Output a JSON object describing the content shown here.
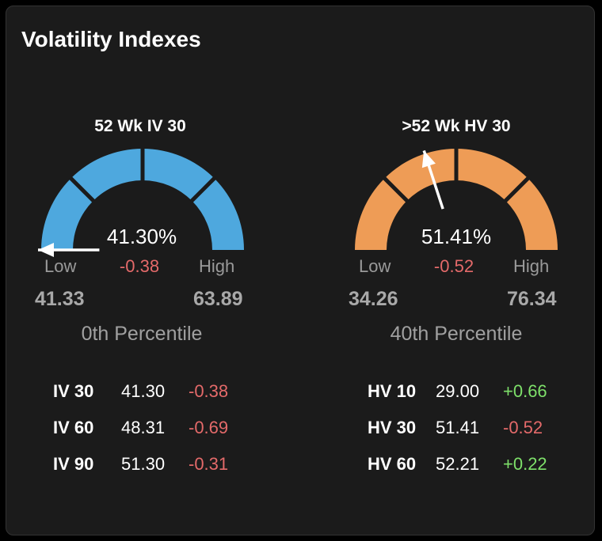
{
  "title": "Volatility Indexes",
  "gauges": [
    {
      "label": "52 Wk IV 30",
      "value": "41.30%",
      "change": "-0.38",
      "low_label": "Low",
      "high_label": "High",
      "low": "41.33",
      "high": "63.89",
      "percentile": "0th Percentile",
      "fill_fraction": 0.0,
      "color": "#4ea8de",
      "rows": [
        {
          "key": "IV 30",
          "value": "41.30",
          "change": "-0.38",
          "dir": "neg"
        },
        {
          "key": "IV 60",
          "value": "48.31",
          "change": "-0.69",
          "dir": "neg"
        },
        {
          "key": "IV 90",
          "value": "51.30",
          "change": "-0.31",
          "dir": "neg"
        }
      ]
    },
    {
      "label": ">52 Wk HV 30",
      "value": "51.41%",
      "change": "-0.52",
      "low_label": "Low",
      "high_label": "High",
      "low": "34.26",
      "high": "76.34",
      "percentile": "40th Percentile",
      "fill_fraction": 0.4,
      "color": "#ee9c56",
      "rows": [
        {
          "key": "HV 10",
          "value": "29.00",
          "change": "+0.66",
          "dir": "pos"
        },
        {
          "key": "HV 30",
          "value": "51.41",
          "change": "-0.52",
          "dir": "neg"
        },
        {
          "key": "HV 60",
          "value": "52.21",
          "change": "+0.22",
          "dir": "pos"
        }
      ]
    }
  ]
}
